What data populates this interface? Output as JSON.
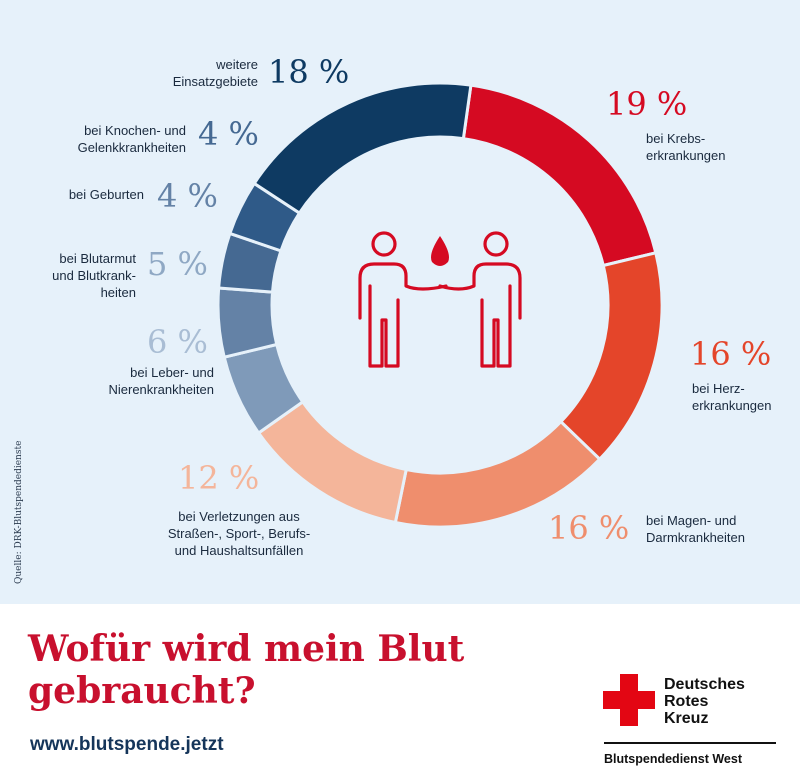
{
  "chart_data": {
    "type": "pie",
    "style": "donut",
    "unit": "%",
    "slices": [
      {
        "value": 19,
        "pct_label": "19 %",
        "label": "bei Krebs-\nerkrankungen",
        "color": "#d50a22"
      },
      {
        "value": 16,
        "pct_label": "16 %",
        "label": "bei Herz-\nerkrankungen",
        "color": "#e4452a"
      },
      {
        "value": 16,
        "pct_label": "16 %",
        "label": "bei Magen- und\nDarmkrankheiten",
        "color": "#ef8e6d"
      },
      {
        "value": 12,
        "pct_label": "12 %",
        "label": "bei Verletzungen aus\nStraßen-, Sport-, Berufs-\nund Haushaltsunfällen",
        "color": "#f4b59a"
      },
      {
        "value": 6,
        "pct_label": "6 %",
        "label": "bei Leber- und\nNierenkrankheiten",
        "color": "#7f9ab9"
      },
      {
        "value": 5,
        "pct_label": "5 %",
        "label": "bei Blutarmut\nund Blutkrank-\nheiten",
        "color": "#6482a6"
      },
      {
        "value": 4,
        "pct_label": "4 %",
        "label": "bei Geburten",
        "color": "#456992"
      },
      {
        "value": 4,
        "pct_label": "4 %",
        "label": "bei Knochen- und\nGelenkkrankheiten",
        "color": "#2f5a88"
      },
      {
        "value": 18,
        "pct_label": "18 %",
        "label": "weitere\nEinsatzgebiete",
        "color": "#0e3a62"
      }
    ],
    "source": "Quelle: DRK-Blutspendedienste"
  },
  "headline": "Wofür wird mein Blut gebraucht?",
  "website": "www.blutspende.jetzt",
  "organization": {
    "name_lines": [
      "Deutsches",
      "Rotes",
      "Kreuz"
    ],
    "subtitle": "Blutspendedienst West",
    "logo": "red-cross-logo"
  }
}
